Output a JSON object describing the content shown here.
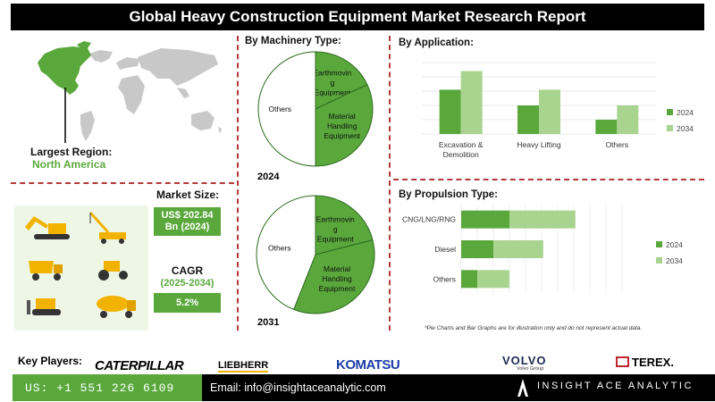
{
  "header": {
    "title": "Global Heavy Construction Equipment Market Research Report"
  },
  "region": {
    "label": "Largest Region:",
    "value": "North America"
  },
  "market": {
    "size_label": "Market Size:",
    "size_value_line1": "US$ 202.84",
    "size_value_line2": "Bn (2024)",
    "cagr_label": "CAGR",
    "cagr_period": "(2025-2034)",
    "cagr_value": "5.2%"
  },
  "colors": {
    "dark_green": "#5aa83c",
    "light_green": "#a9d48f",
    "accent_red": "#b33a3a"
  },
  "chart_data": [
    {
      "type": "pie",
      "title": "By  Machinery Type:",
      "year": "2024",
      "labels": [
        "Earthmoving Equipment",
        "Material Handling Equipment",
        "Others"
      ],
      "display_labels": [
        [
          "Earthmovin",
          "g",
          "Equipment"
        ],
        [
          "Material",
          "Handling",
          "Equipment"
        ],
        [
          "Others"
        ]
      ],
      "values": [
        18,
        32,
        50
      ]
    },
    {
      "type": "pie",
      "year": "2031",
      "labels": [
        "Earthmoving Equipment",
        "Material Handling Equipment",
        "Others"
      ],
      "display_labels": [
        [
          "Earthmovin",
          "g",
          "Equipment"
        ],
        [
          "Material",
          "Handling",
          "Equipment"
        ],
        [
          "Others"
        ]
      ],
      "values": [
        21,
        35,
        44
      ]
    },
    {
      "type": "bar",
      "title": "By Application:",
      "categories": [
        "Excavation & Demolition",
        "Heavy Lifting",
        "Others"
      ],
      "category_lines": [
        [
          "Excavation &",
          "Demolition"
        ],
        [
          "Heavy Lifting"
        ],
        [
          "Others"
        ]
      ],
      "series": [
        {
          "name": "2024",
          "values": [
            3.1,
            2.0,
            1.0
          ]
        },
        {
          "name": "2034",
          "values": [
            4.4,
            3.1,
            2.0
          ]
        }
      ],
      "ylim": [
        0,
        5
      ]
    },
    {
      "type": "bar",
      "orientation": "horizontal",
      "stacked": true,
      "title": "By Propulsion Type:",
      "categories": [
        "CNG/LNG/RNG",
        "Diesel",
        "Others"
      ],
      "series": [
        {
          "name": "2024",
          "values": [
            3.0,
            2.0,
            1.0
          ]
        },
        {
          "name": "2034",
          "values": [
            4.1,
            3.1,
            2.0
          ]
        }
      ],
      "xlim": [
        0,
        10
      ]
    }
  ],
  "disclaimer": "*Pie Charts and Bar Graphs are for illustration only and do not represent actual data.",
  "key_players": {
    "label": "Key Players:",
    "logos": [
      "CATERPILLAR",
      "LIEBHERR",
      "KOMATSU",
      "VOLVO",
      "TEREX."
    ],
    "volvo_sub": "Volvo Group"
  },
  "footer": {
    "phone": "US: +1 551 226 6109",
    "email": "Email: info@insightaceanalytic.com",
    "brand": "INSIGHT ACE ANALYTIC"
  }
}
